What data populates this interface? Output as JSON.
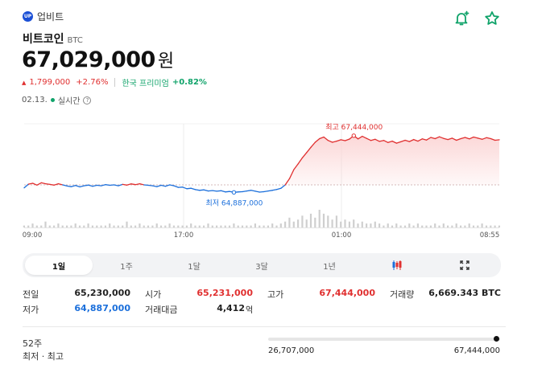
{
  "header": {
    "exchange_logo": "UP",
    "exchange_name": "업비트",
    "icons": [
      "bell-plus-icon",
      "star-icon"
    ],
    "accent_color": "#10a36a"
  },
  "coin": {
    "name": "비트코인",
    "symbol": "BTC",
    "price": "67,029,000",
    "unit": "원"
  },
  "change": {
    "arrow": "▲",
    "amount": "1,799,000",
    "percent": "+2.76%",
    "premium_label": "한국 프리미엄",
    "premium_value": "+0.82%"
  },
  "status": {
    "date": "02.13.",
    "live_label": "실시간",
    "help_icon": "?"
  },
  "chart_data": {
    "type": "area",
    "baseline": 65230000,
    "high_label": "최고 67,444,000",
    "low_label": "최저 64,887,000",
    "x_ticks": [
      "09:00",
      "17:00",
      "01:00",
      "08:55"
    ],
    "colors": {
      "up": "#e03030",
      "down": "#1b6fdb",
      "up_fill": "#fbd3d3",
      "volume": "#cfcfcf"
    },
    "series": [
      {
        "values": [
          65100000,
          65260000,
          65300000,
          65220000,
          65320000,
          65280000,
          65250000,
          65220000,
          65280000,
          65230000,
          65180000,
          65150000,
          65200000,
          65140000,
          65190000,
          65220000,
          65170000,
          65210000,
          65190000,
          65240000,
          65210000,
          65230000,
          65190000,
          65250000,
          65220000,
          65270000,
          65240000,
          65280000,
          65230000,
          65210000,
          65190000,
          65150000,
          65210000,
          65170000,
          65230000,
          65190000,
          65120000,
          65130000,
          65060000,
          65080000,
          65020000,
          64990000,
          65010000,
          64960000,
          64980000,
          64950000,
          64970000,
          64920000,
          64940000,
          64900000,
          64920000,
          64930000,
          64960000,
          64990000,
          64950000,
          64910000,
          64930000,
          64960000,
          64990000,
          65030000,
          65080000,
          65230000,
          65500000,
          65900000,
          66150000,
          66420000,
          66650000,
          66880000,
          67100000,
          67260000,
          67330000,
          67180000,
          67100000,
          67150000,
          67210000,
          67170000,
          67240000,
          67390000,
          67250000,
          67360000,
          67270000,
          67180000,
          67230000,
          67140000,
          67180000,
          67090000,
          67150000,
          67060000,
          67120000,
          67190000,
          67130000,
          67220000,
          67150000,
          67250000,
          67200000,
          67310000,
          67260000,
          67340000,
          67270000,
          67220000,
          67280000,
          67190000,
          67260000,
          67310000,
          67250000,
          67330000,
          67280000,
          67230000,
          67300000,
          67260000,
          67190000,
          67210000
        ]
      }
    ],
    "volume": [
      1,
      1,
      2,
      1,
      1,
      3,
      1,
      1,
      2,
      1,
      1,
      1,
      2,
      1,
      1,
      2,
      1,
      1,
      1,
      1,
      2,
      1,
      1,
      1,
      3,
      1,
      1,
      2,
      1,
      1,
      1,
      2,
      1,
      1,
      2,
      1,
      1,
      1,
      1,
      2,
      1,
      1,
      1,
      2,
      1,
      1,
      1,
      1,
      1,
      2,
      1,
      1,
      1,
      1,
      2,
      1,
      1,
      1,
      2,
      1,
      2,
      3,
      5,
      3,
      4,
      6,
      4,
      7,
      5,
      9,
      7,
      6,
      4,
      6,
      3,
      4,
      3,
      4,
      2,
      3,
      2,
      2,
      3,
      2,
      1,
      2,
      1,
      2,
      1,
      1,
      2,
      1,
      2,
      1,
      1,
      1,
      2,
      1,
      2,
      1,
      1,
      2,
      1,
      1,
      2,
      1,
      1,
      2,
      1,
      1,
      1,
      1
    ]
  },
  "periods": {
    "items": [
      "1일",
      "1주",
      "1달",
      "3달",
      "1년"
    ],
    "active": "1일",
    "icons": [
      "candle-chart-icon",
      "expand-icon"
    ]
  },
  "stats": {
    "prev_close_label": "전일",
    "prev_close": "65,230,000",
    "open_label": "시가",
    "open": "65,231,000",
    "high_label": "고가",
    "high": "67,444,000",
    "volume_label": "거래량",
    "volume": "6,669.343 BTC",
    "low_label": "저가",
    "low": "64,887,000",
    "turnover_label": "거래대금",
    "turnover": "4,412",
    "turnover_unit": "억"
  },
  "week52": {
    "label_line1": "52주",
    "label_line2": "최저 · 최고",
    "low": "26,707,000",
    "high": "67,444,000",
    "current_position": 0.99
  }
}
